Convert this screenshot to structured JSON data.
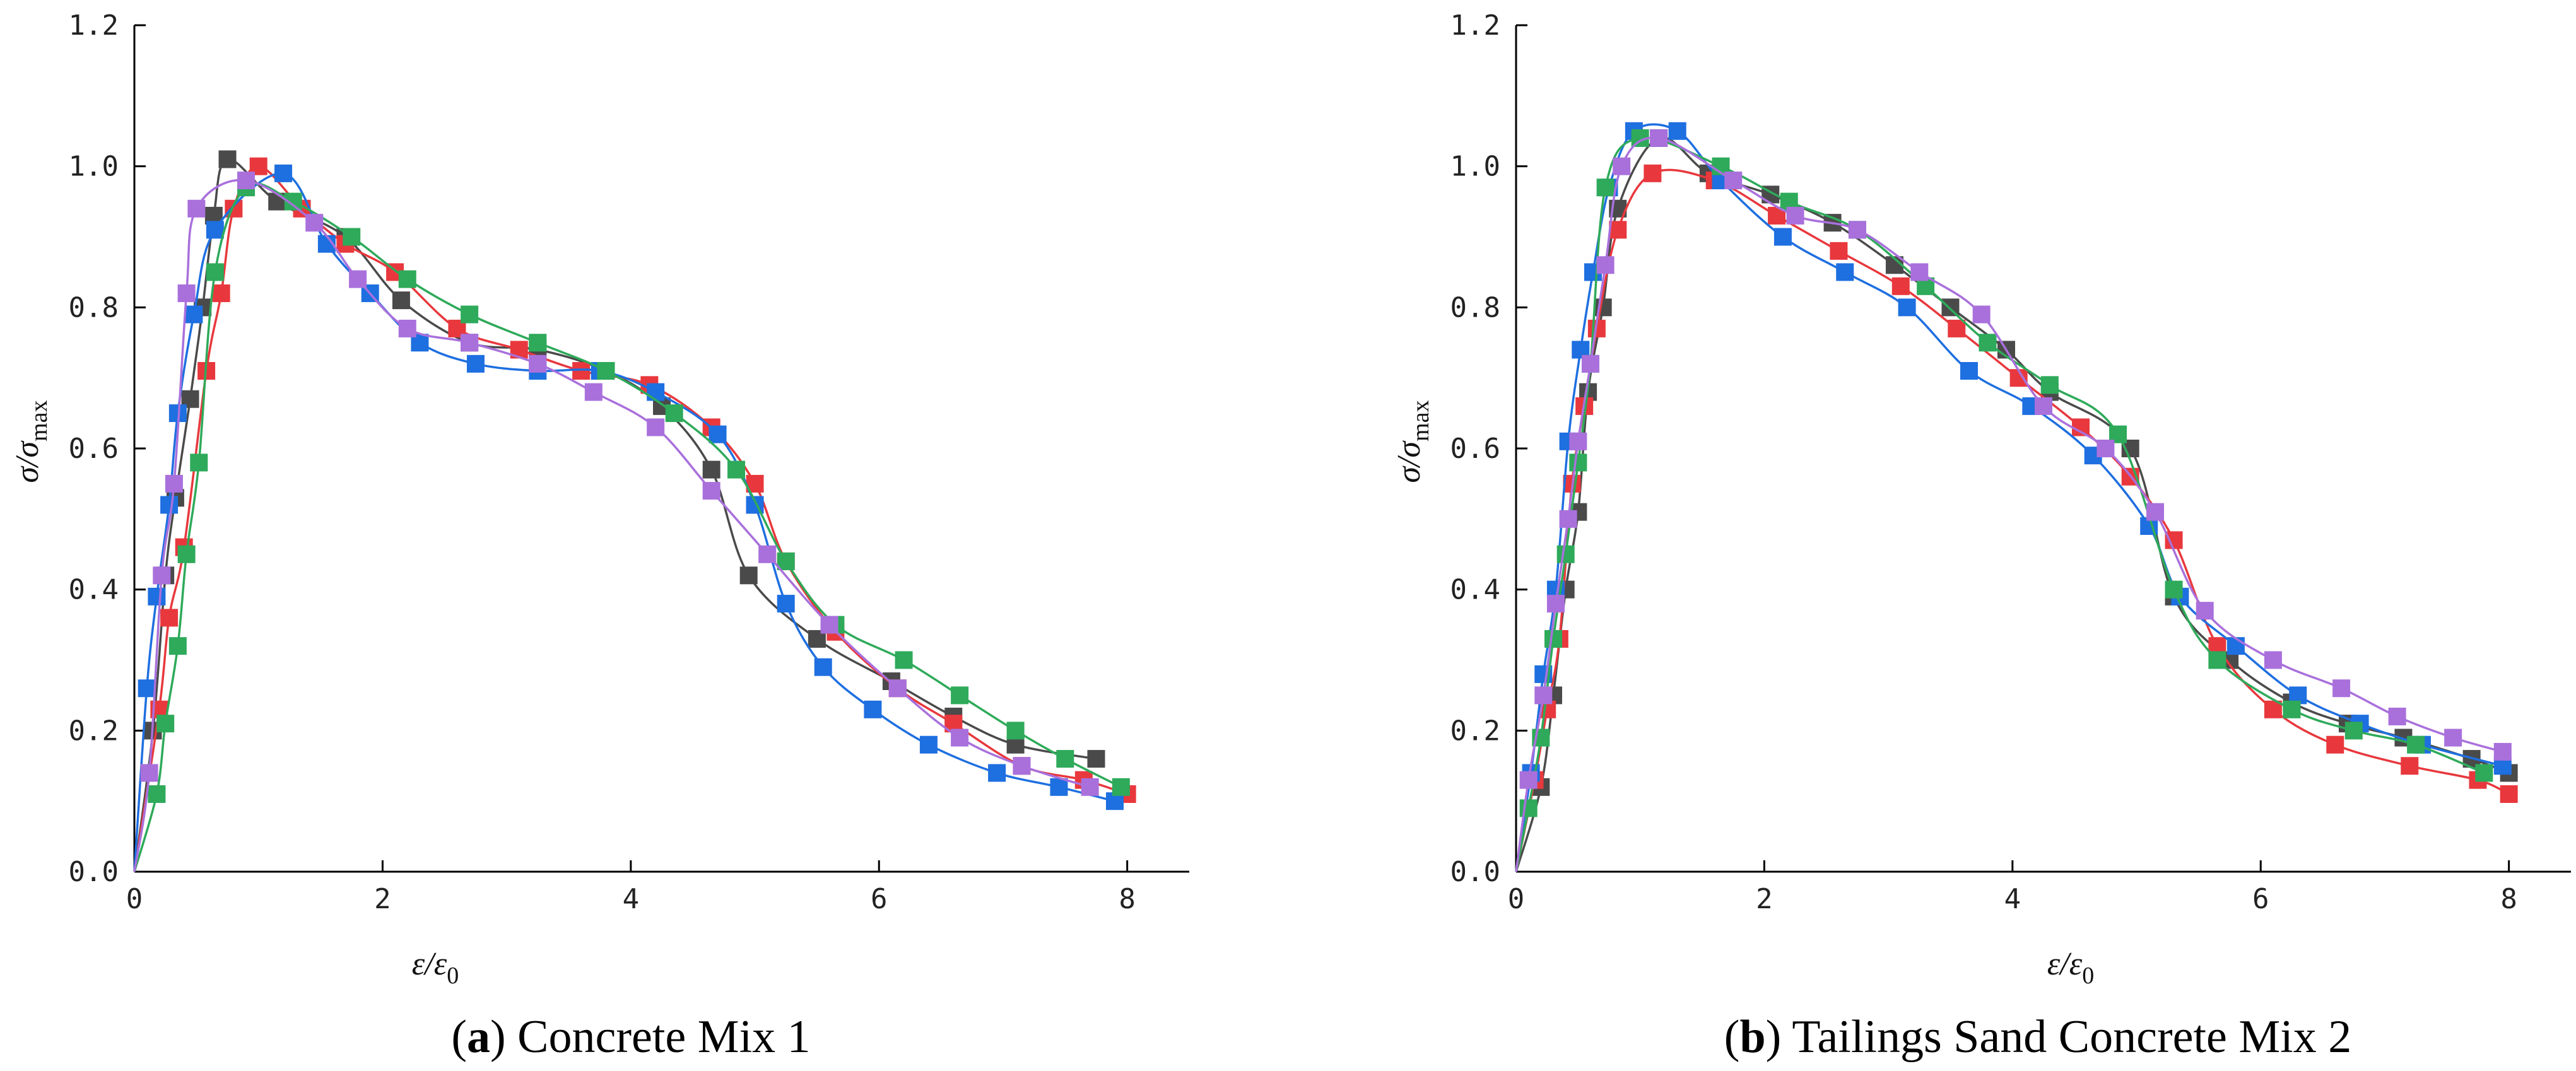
{
  "chart_data": [
    {
      "type": "line",
      "caption_letter": "a",
      "caption_text": "Concrete Mix 1",
      "xlabel": "ε/ε0",
      "ylabel": "σ/σmax",
      "xlim": [
        0,
        8.5
      ],
      "ylim": [
        0,
        1.2
      ],
      "xticks": [
        0,
        2,
        4,
        6,
        8
      ],
      "xtick_labels": [
        "0",
        "2",
        "4",
        "6",
        "8"
      ],
      "yticks": [
        0.0,
        0.2,
        0.4,
        0.6,
        0.8,
        1.0,
        1.2
      ],
      "ytick_labels": [
        "0.0",
        "0.2",
        "0.4",
        "0.6",
        "0.8",
        "1.0",
        "1.2"
      ],
      "series": [
        {
          "name": "Dark grey",
          "color": "#4a4a4a",
          "x": [
            0,
            0.15,
            0.25,
            0.33,
            0.45,
            0.55,
            0.64,
            0.75,
            1.15,
            1.7,
            2.15,
            2.7,
            3.25,
            3.8,
            4.25,
            4.65,
            4.95,
            5.5,
            6.1,
            6.6,
            7.1,
            7.75
          ],
          "y": [
            0,
            0.2,
            0.42,
            0.53,
            0.67,
            0.8,
            0.93,
            1.01,
            0.95,
            0.9,
            0.81,
            0.75,
            0.74,
            0.71,
            0.66,
            0.57,
            0.42,
            0.33,
            0.27,
            0.22,
            0.18,
            0.16
          ]
        },
        {
          "name": "Red",
          "color": "#e8383d",
          "x": [
            0,
            0.2,
            0.28,
            0.4,
            0.58,
            0.7,
            0.8,
            1.0,
            1.35,
            1.7,
            2.1,
            2.6,
            3.1,
            3.6,
            4.15,
            4.65,
            5.0,
            5.25,
            5.65,
            6.15,
            6.6,
            7.15,
            7.65,
            8.0
          ],
          "y": [
            0,
            0.23,
            0.36,
            0.46,
            0.71,
            0.82,
            0.94,
            1.0,
            0.94,
            0.89,
            0.85,
            0.77,
            0.74,
            0.71,
            0.69,
            0.63,
            0.55,
            0.44,
            0.34,
            0.26,
            0.21,
            0.15,
            0.13,
            0.11
          ]
        },
        {
          "name": "Blue",
          "color": "#1e6fe0",
          "x": [
            0,
            0.1,
            0.18,
            0.28,
            0.35,
            0.48,
            0.65,
            1.2,
            1.55,
            1.9,
            2.3,
            2.75,
            3.25,
            3.75,
            4.2,
            4.7,
            5.0,
            5.25,
            5.55,
            5.95,
            6.4,
            6.95,
            7.45,
            7.9
          ],
          "y": [
            0,
            0.26,
            0.39,
            0.52,
            0.65,
            0.79,
            0.91,
            0.99,
            0.89,
            0.82,
            0.75,
            0.72,
            0.71,
            0.71,
            0.68,
            0.62,
            0.52,
            0.38,
            0.29,
            0.23,
            0.18,
            0.14,
            0.12,
            0.1
          ]
        },
        {
          "name": "Green",
          "color": "#2eaa5a",
          "x": [
            0,
            0.18,
            0.25,
            0.35,
            0.42,
            0.52,
            0.65,
            0.9,
            1.28,
            1.75,
            2.2,
            2.7,
            3.25,
            3.8,
            4.35,
            4.85,
            5.25,
            5.65,
            6.2,
            6.65,
            7.1,
            7.5,
            7.95
          ],
          "y": [
            0,
            0.11,
            0.21,
            0.32,
            0.45,
            0.58,
            0.85,
            0.97,
            0.95,
            0.9,
            0.84,
            0.79,
            0.75,
            0.71,
            0.65,
            0.57,
            0.44,
            0.35,
            0.3,
            0.25,
            0.2,
            0.16,
            0.12
          ]
        },
        {
          "name": "Purple",
          "color": "#a970dc",
          "x": [
            0,
            0.12,
            0.22,
            0.32,
            0.42,
            0.5,
            0.9,
            1.45,
            1.8,
            2.2,
            2.7,
            3.25,
            3.7,
            4.2,
            4.65,
            5.1,
            5.6,
            6.15,
            6.65,
            7.15,
            7.7
          ],
          "y": [
            0,
            0.14,
            0.42,
            0.55,
            0.82,
            0.94,
            0.98,
            0.92,
            0.84,
            0.77,
            0.75,
            0.72,
            0.68,
            0.63,
            0.54,
            0.45,
            0.35,
            0.26,
            0.19,
            0.15,
            0.12
          ]
        }
      ]
    },
    {
      "type": "line",
      "caption_letter": "b",
      "caption_text": "Tailings Sand Concrete Mix 2",
      "xlabel": "ε/ε0",
      "ylabel": "σ/σmax",
      "xlim": [
        0,
        8.5
      ],
      "ylim": [
        0,
        1.2
      ],
      "xticks": [
        0,
        2,
        4,
        6,
        8
      ],
      "xtick_labels": [
        "0",
        "2",
        "4",
        "6",
        "8"
      ],
      "yticks": [
        0.0,
        0.2,
        0.4,
        0.6,
        0.8,
        1.0,
        1.2
      ],
      "ytick_labels": [
        "0.0",
        "0.2",
        "0.4",
        "0.6",
        "0.8",
        "1.0",
        "1.2"
      ],
      "series": [
        {
          "name": "Dark grey",
          "color": "#4a4a4a",
          "x": [
            0,
            0.2,
            0.3,
            0.4,
            0.5,
            0.58,
            0.7,
            0.82,
            1.15,
            1.55,
            2.05,
            2.55,
            3.05,
            3.5,
            3.95,
            4.3,
            4.95,
            5.3,
            5.75,
            6.25,
            6.7,
            7.15,
            7.7,
            8.0
          ],
          "y": [
            0,
            0.12,
            0.25,
            0.4,
            0.51,
            0.68,
            0.8,
            0.94,
            1.04,
            0.99,
            0.96,
            0.92,
            0.86,
            0.8,
            0.74,
            0.68,
            0.6,
            0.39,
            0.3,
            0.24,
            0.21,
            0.19,
            0.16,
            0.14
          ]
        },
        {
          "name": "Red",
          "color": "#e8383d",
          "x": [
            0,
            0.15,
            0.25,
            0.35,
            0.45,
            0.55,
            0.65,
            0.82,
            1.1,
            1.6,
            2.1,
            2.6,
            3.1,
            3.55,
            4.05,
            4.55,
            4.95,
            5.3,
            5.65,
            6.1,
            6.6,
            7.2,
            7.75,
            8.0
          ],
          "y": [
            0,
            0.13,
            0.23,
            0.33,
            0.55,
            0.66,
            0.77,
            0.91,
            0.99,
            0.98,
            0.93,
            0.88,
            0.83,
            0.77,
            0.7,
            0.63,
            0.56,
            0.47,
            0.32,
            0.23,
            0.18,
            0.15,
            0.13,
            0.11
          ]
        },
        {
          "name": "Blue",
          "color": "#1e6fe0",
          "x": [
            0,
            0.12,
            0.22,
            0.32,
            0.42,
            0.52,
            0.62,
            0.75,
            0.95,
            1.3,
            1.65,
            2.15,
            2.65,
            3.15,
            3.65,
            4.15,
            4.65,
            5.1,
            5.35,
            5.8,
            6.3,
            6.8,
            7.3,
            7.95
          ],
          "y": [
            0,
            0.14,
            0.28,
            0.4,
            0.61,
            0.74,
            0.85,
            0.97,
            1.05,
            1.05,
            0.98,
            0.9,
            0.85,
            0.8,
            0.71,
            0.66,
            0.59,
            0.49,
            0.39,
            0.32,
            0.25,
            0.21,
            0.18,
            0.15
          ]
        },
        {
          "name": "Green",
          "color": "#2eaa5a",
          "x": [
            0,
            0.1,
            0.2,
            0.3,
            0.4,
            0.5,
            0.6,
            0.72,
            1.0,
            1.65,
            2.2,
            2.75,
            3.3,
            3.8,
            4.3,
            4.85,
            5.3,
            5.65,
            6.25,
            6.75,
            7.25,
            7.8
          ],
          "y": [
            0,
            0.09,
            0.19,
            0.33,
            0.45,
            0.58,
            0.72,
            0.97,
            1.04,
            1.0,
            0.95,
            0.91,
            0.83,
            0.75,
            0.69,
            0.62,
            0.4,
            0.3,
            0.23,
            0.2,
            0.18,
            0.14
          ]
        },
        {
          "name": "Purple",
          "color": "#a970dc",
          "x": [
            0,
            0.1,
            0.22,
            0.32,
            0.42,
            0.5,
            0.6,
            0.72,
            0.85,
            1.15,
            1.75,
            2.25,
            2.75,
            3.25,
            3.75,
            4.25,
            4.75,
            5.15,
            5.55,
            6.1,
            6.65,
            7.1,
            7.55,
            7.95
          ],
          "y": [
            0,
            0.13,
            0.25,
            0.38,
            0.5,
            0.61,
            0.72,
            0.86,
            1.0,
            1.04,
            0.98,
            0.93,
            0.91,
            0.85,
            0.79,
            0.66,
            0.6,
            0.51,
            0.37,
            0.3,
            0.26,
            0.22,
            0.19,
            0.17
          ]
        }
      ]
    }
  ]
}
